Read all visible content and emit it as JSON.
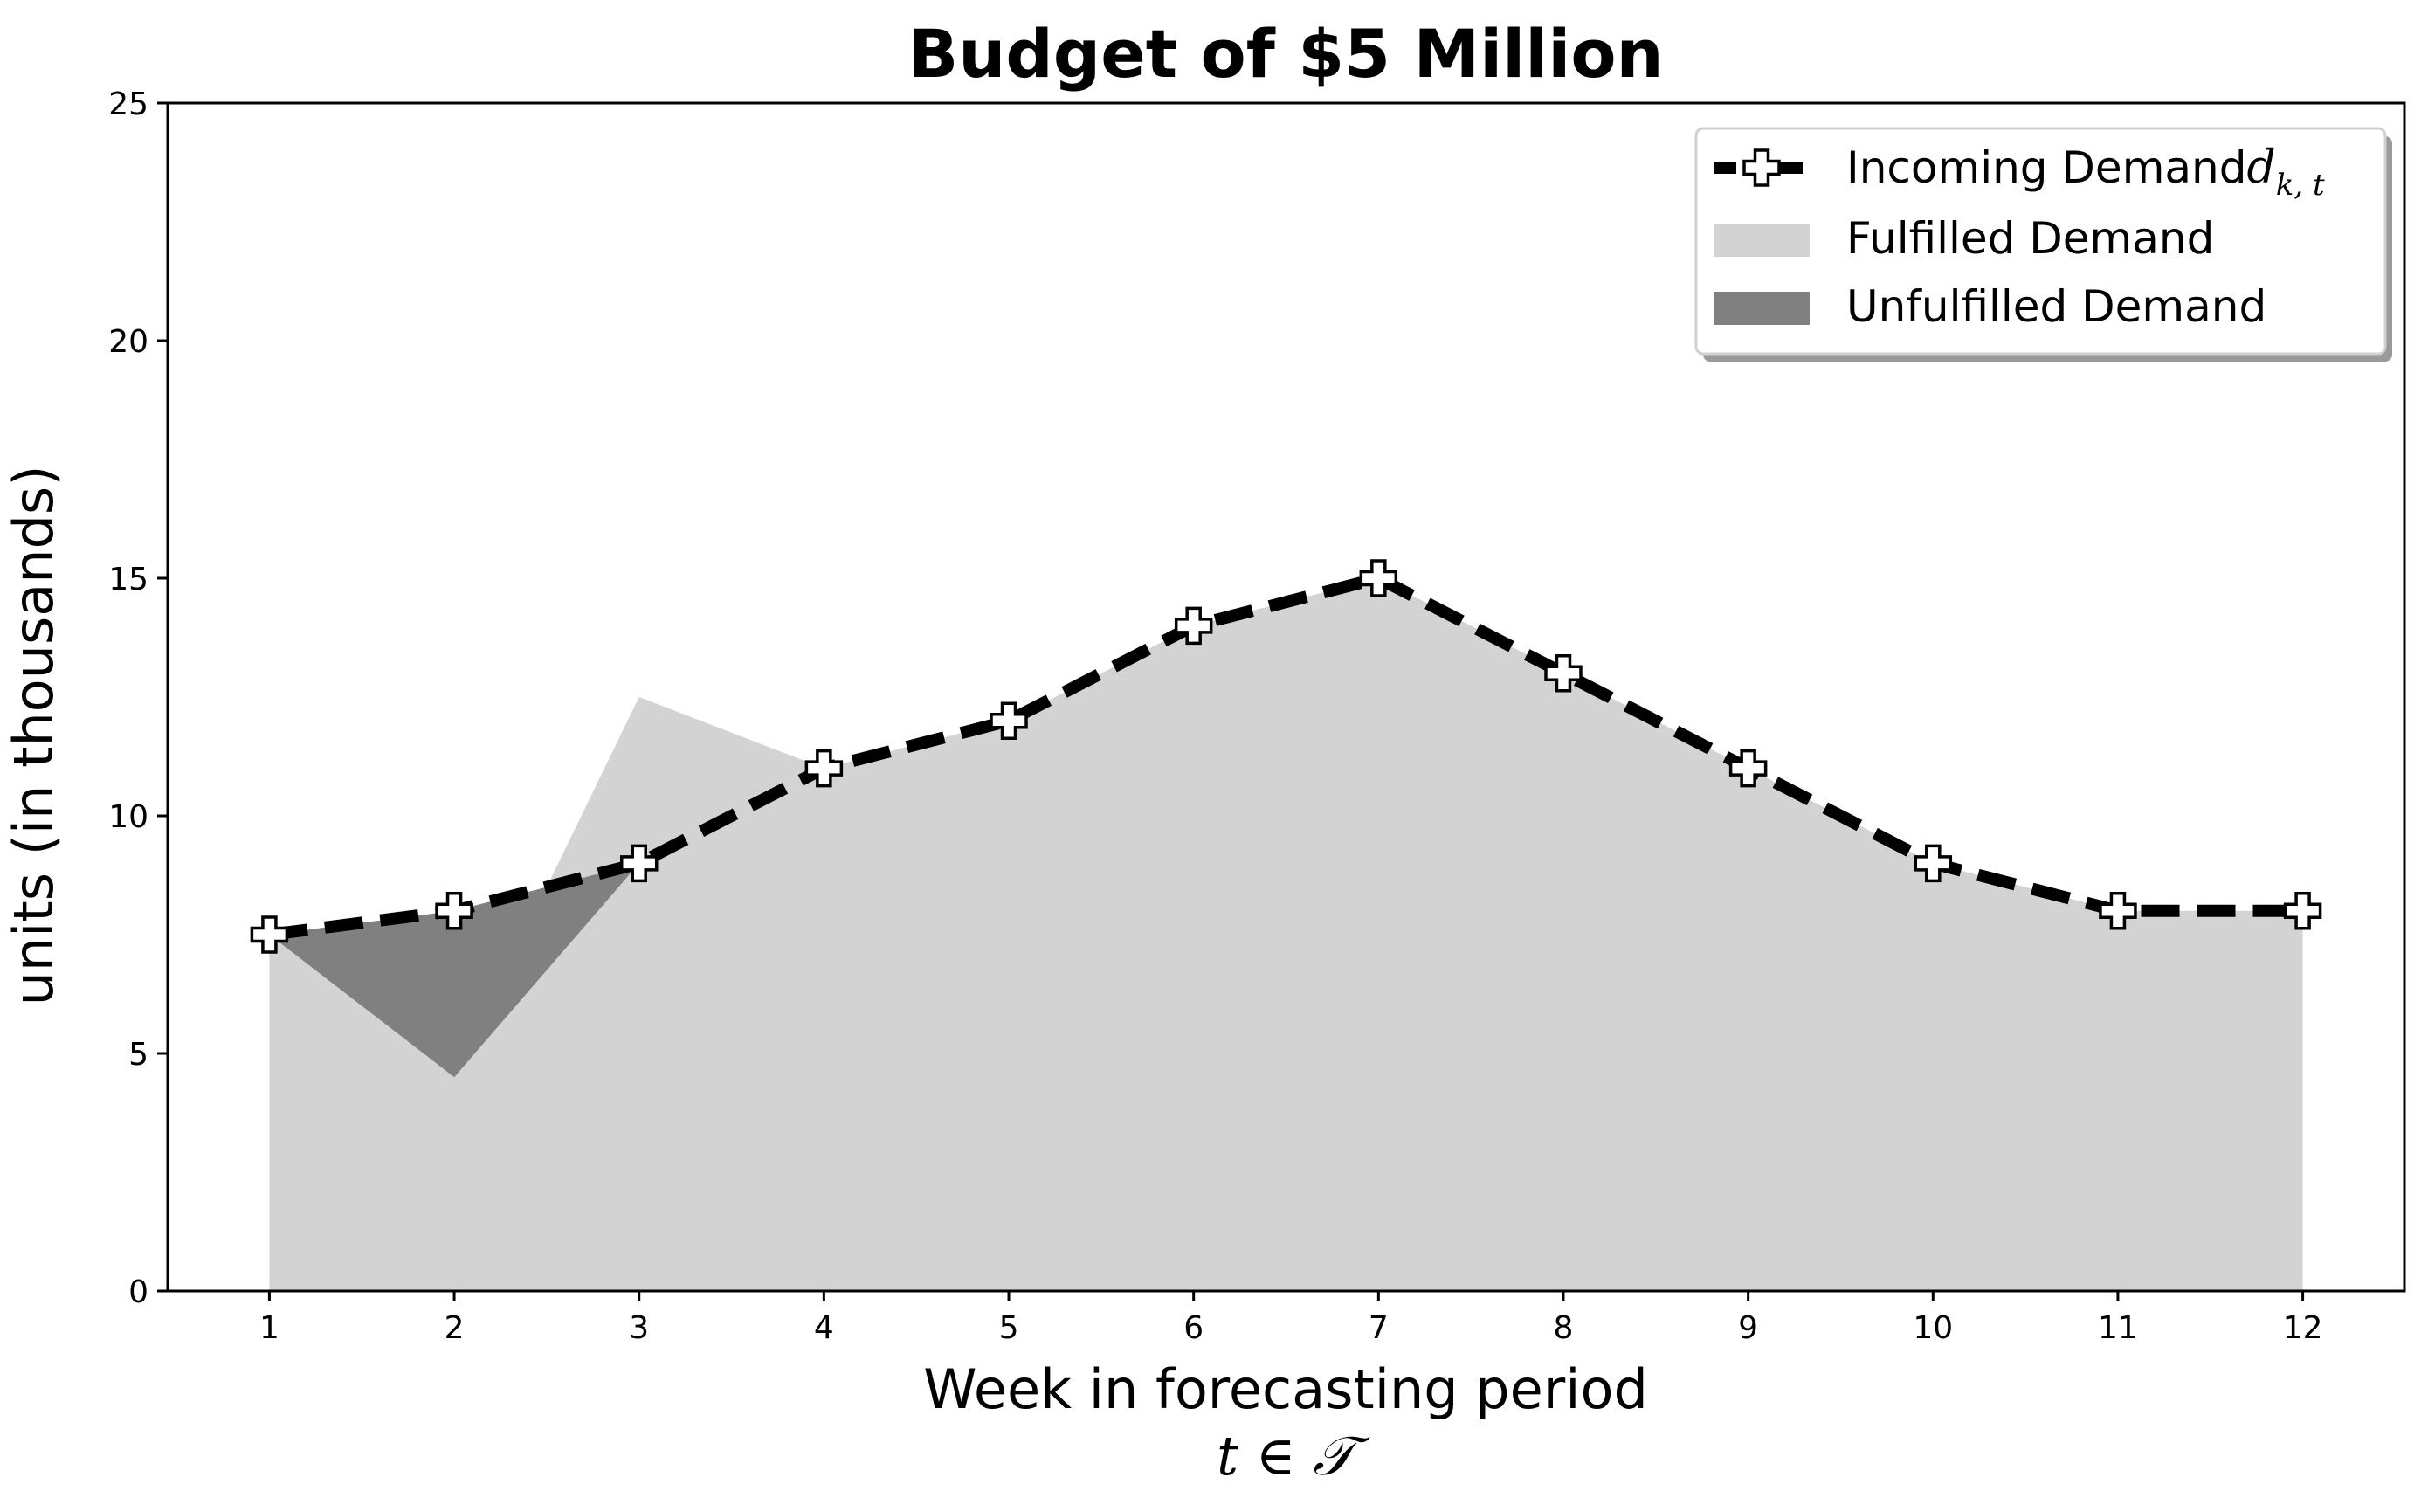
{
  "chart_data": {
    "type": "area",
    "title": "Budget of $5 Million",
    "xlabel": "Week in forecasting period",
    "xlabel_math": "t ∈ 𝒯",
    "ylabel": "units (in thousands)",
    "x": [
      1,
      2,
      3,
      4,
      5,
      6,
      7,
      8,
      9,
      10,
      11,
      12
    ],
    "xlim": [
      0.45,
      12.55
    ],
    "ylim": [
      0,
      25
    ],
    "yticks": [
      0,
      5,
      10,
      15,
      20,
      25
    ],
    "grid": false,
    "legend_position": "top-right",
    "series": [
      {
        "name": "Incoming Demand",
        "name_math": "d",
        "name_subscript": "k, t",
        "kind": "line",
        "style": "dashed",
        "marker": "plus",
        "color": "#000000",
        "values": [
          7.5,
          8,
          9,
          11,
          12,
          14,
          15,
          13,
          11,
          9,
          8,
          8
        ]
      },
      {
        "name": "Fulfilled Demand",
        "kind": "area",
        "color": "#d3d3d3",
        "values": [
          7.5,
          4.5,
          12.5,
          11,
          12,
          14,
          15,
          13,
          11,
          9,
          8,
          8
        ]
      },
      {
        "name": "Unfulfilled Demand",
        "kind": "area-between",
        "color": "#808080",
        "note_values_are_lower_bound_per_week": "",
        "values": [
          7.5,
          4.5,
          9,
          11,
          12,
          14,
          15,
          13,
          11,
          9,
          8,
          8
        ]
      }
    ]
  }
}
